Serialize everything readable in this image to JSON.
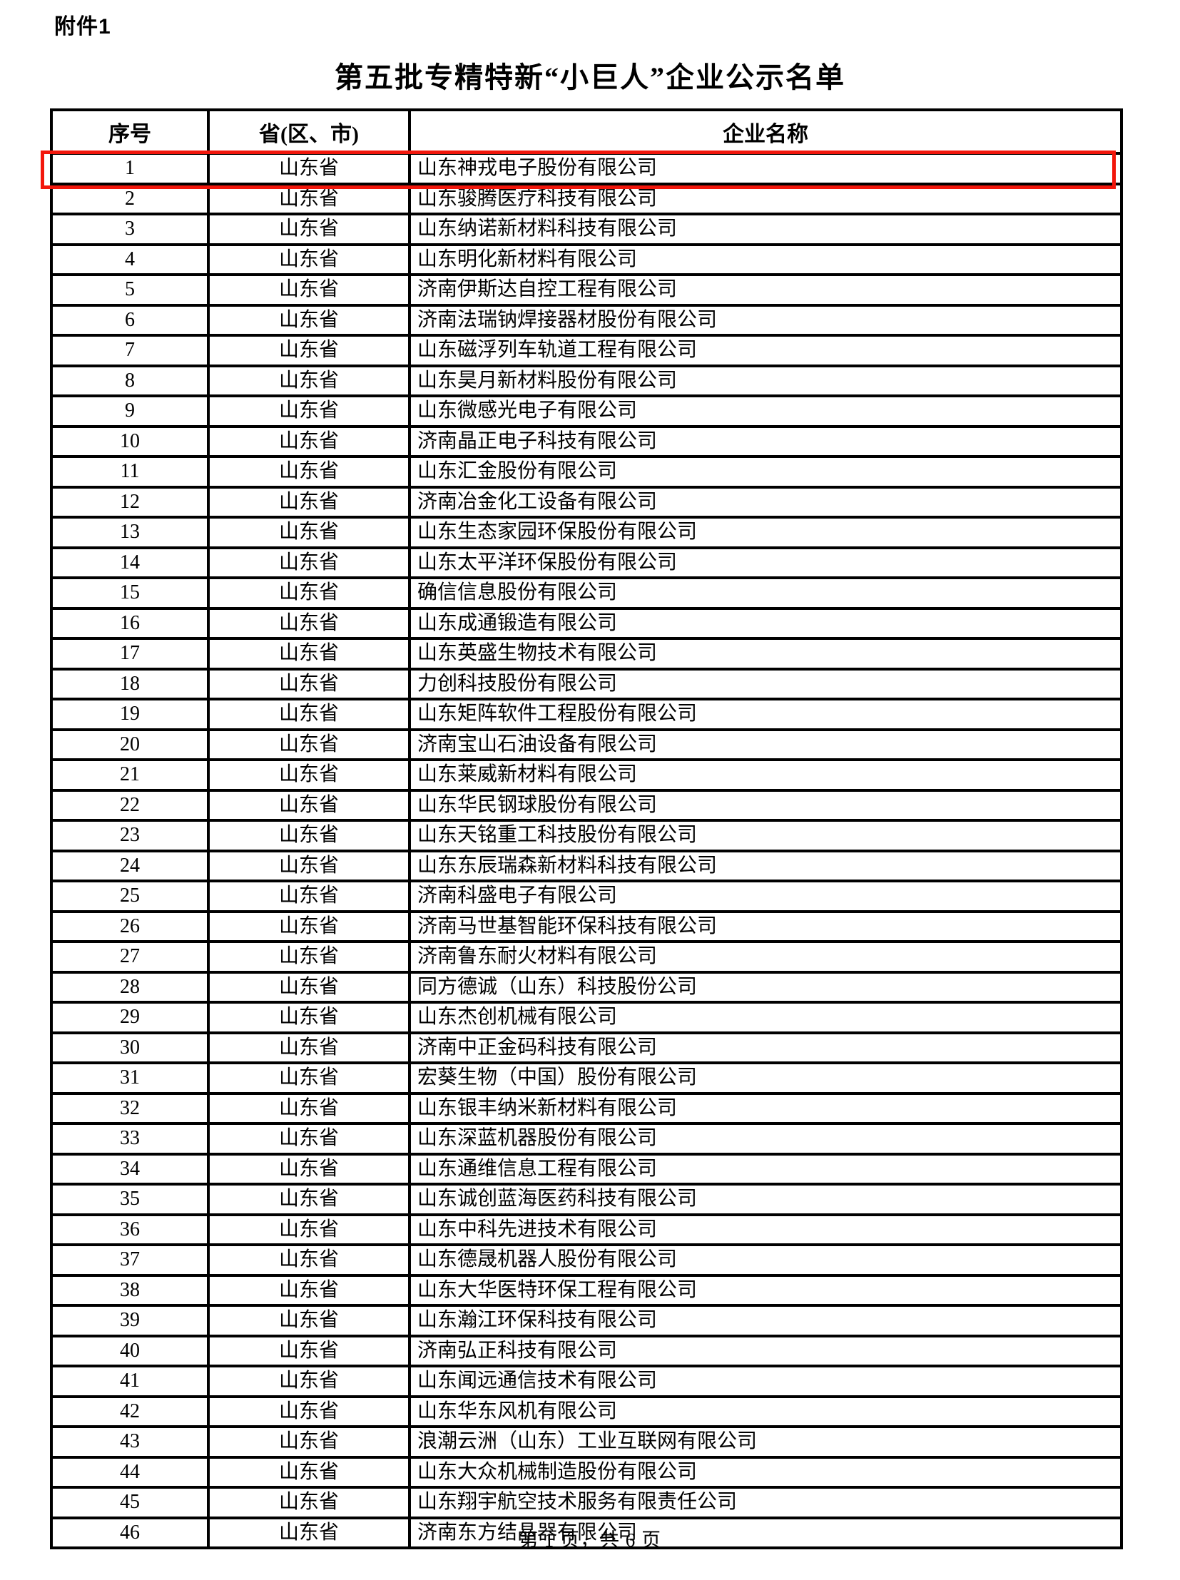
{
  "page": {
    "attachment_label": "附件1",
    "title": "第五批专精特新“小巨人”企业公示名单",
    "footer": "第 1 页，共 6 页"
  },
  "highlight": {
    "row_number": "1",
    "color": "#f2170c"
  },
  "table": {
    "headers": {
      "no": "序号",
      "province": "省(区、市)",
      "company": "企业名称"
    },
    "rows": [
      {
        "no": "1",
        "province": "山东省",
        "company": "山东神戎电子股份有限公司"
      },
      {
        "no": "2",
        "province": "山东省",
        "company": "山东骏腾医疗科技有限公司"
      },
      {
        "no": "3",
        "province": "山东省",
        "company": "山东纳诺新材料科技有限公司"
      },
      {
        "no": "4",
        "province": "山东省",
        "company": "山东明化新材料有限公司"
      },
      {
        "no": "5",
        "province": "山东省",
        "company": "济南伊斯达自控工程有限公司"
      },
      {
        "no": "6",
        "province": "山东省",
        "company": "济南法瑞钠焊接器材股份有限公司"
      },
      {
        "no": "7",
        "province": "山东省",
        "company": "山东磁浮列车轨道工程有限公司"
      },
      {
        "no": "8",
        "province": "山东省",
        "company": "山东昊月新材料股份有限公司"
      },
      {
        "no": "9",
        "province": "山东省",
        "company": "山东微感光电子有限公司"
      },
      {
        "no": "10",
        "province": "山东省",
        "company": "济南晶正电子科技有限公司"
      },
      {
        "no": "11",
        "province": "山东省",
        "company": "山东汇金股份有限公司"
      },
      {
        "no": "12",
        "province": "山东省",
        "company": "济南冶金化工设备有限公司"
      },
      {
        "no": "13",
        "province": "山东省",
        "company": "山东生态家园环保股份有限公司"
      },
      {
        "no": "14",
        "province": "山东省",
        "company": "山东太平洋环保股份有限公司"
      },
      {
        "no": "15",
        "province": "山东省",
        "company": "确信信息股份有限公司"
      },
      {
        "no": "16",
        "province": "山东省",
        "company": "山东成通锻造有限公司"
      },
      {
        "no": "17",
        "province": "山东省",
        "company": "山东英盛生物技术有限公司"
      },
      {
        "no": "18",
        "province": "山东省",
        "company": "力创科技股份有限公司"
      },
      {
        "no": "19",
        "province": "山东省",
        "company": "山东矩阵软件工程股份有限公司"
      },
      {
        "no": "20",
        "province": "山东省",
        "company": "济南宝山石油设备有限公司"
      },
      {
        "no": "21",
        "province": "山东省",
        "company": "山东莱威新材料有限公司"
      },
      {
        "no": "22",
        "province": "山东省",
        "company": "山东华民钢球股份有限公司"
      },
      {
        "no": "23",
        "province": "山东省",
        "company": "山东天铭重工科技股份有限公司"
      },
      {
        "no": "24",
        "province": "山东省",
        "company": "山东东辰瑞森新材料科技有限公司"
      },
      {
        "no": "25",
        "province": "山东省",
        "company": "济南科盛电子有限公司"
      },
      {
        "no": "26",
        "province": "山东省",
        "company": "济南马世基智能环保科技有限公司"
      },
      {
        "no": "27",
        "province": "山东省",
        "company": "济南鲁东耐火材料有限公司"
      },
      {
        "no": "28",
        "province": "山东省",
        "company": "同方德诚（山东）科技股份公司"
      },
      {
        "no": "29",
        "province": "山东省",
        "company": "山东杰创机械有限公司"
      },
      {
        "no": "30",
        "province": "山东省",
        "company": "济南中正金码科技有限公司"
      },
      {
        "no": "31",
        "province": "山东省",
        "company": "宏葵生物（中国）股份有限公司"
      },
      {
        "no": "32",
        "province": "山东省",
        "company": "山东银丰纳米新材料有限公司"
      },
      {
        "no": "33",
        "province": "山东省",
        "company": "山东深蓝机器股份有限公司"
      },
      {
        "no": "34",
        "province": "山东省",
        "company": "山东通维信息工程有限公司"
      },
      {
        "no": "35",
        "province": "山东省",
        "company": "山东诚创蓝海医药科技有限公司"
      },
      {
        "no": "36",
        "province": "山东省",
        "company": "山东中科先进技术有限公司"
      },
      {
        "no": "37",
        "province": "山东省",
        "company": "山东德晟机器人股份有限公司"
      },
      {
        "no": "38",
        "province": "山东省",
        "company": "山东大华医特环保工程有限公司"
      },
      {
        "no": "39",
        "province": "山东省",
        "company": "山东瀚江环保科技有限公司"
      },
      {
        "no": "40",
        "province": "山东省",
        "company": "济南弘正科技有限公司"
      },
      {
        "no": "41",
        "province": "山东省",
        "company": "山东闻远通信技术有限公司"
      },
      {
        "no": "42",
        "province": "山东省",
        "company": "山东华东风机有限公司"
      },
      {
        "no": "43",
        "province": "山东省",
        "company": "浪潮云洲（山东）工业互联网有限公司"
      },
      {
        "no": "44",
        "province": "山东省",
        "company": "山东大众机械制造股份有限公司"
      },
      {
        "no": "45",
        "province": "山东省",
        "company": "山东翔宇航空技术服务有限责任公司"
      },
      {
        "no": "46",
        "province": "山东省",
        "company": "济南东方结晶器有限公司"
      }
    ]
  }
}
